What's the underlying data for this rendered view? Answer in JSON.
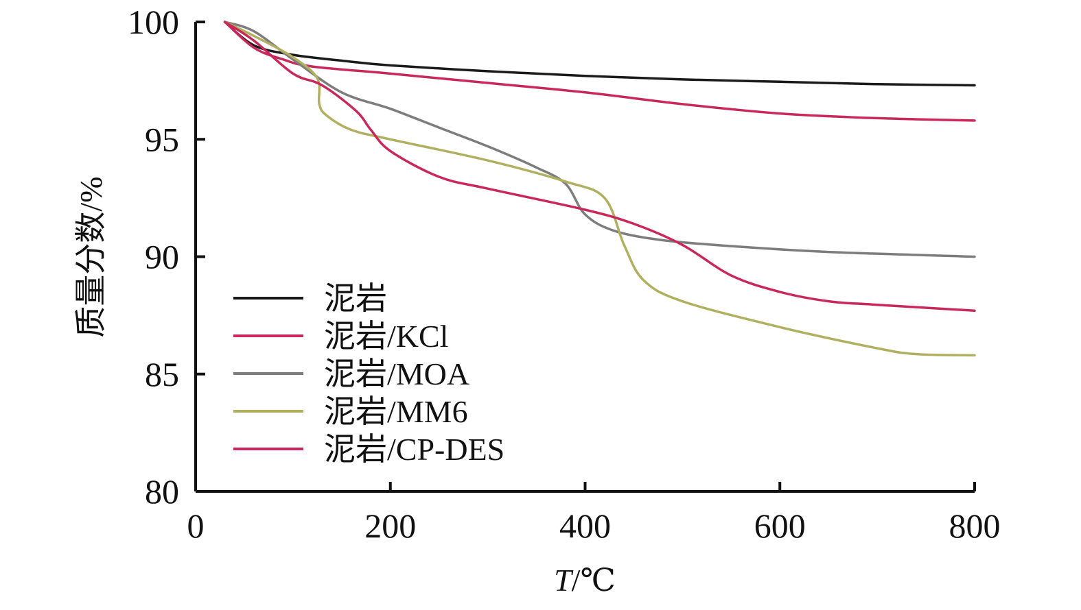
{
  "chart_data": {
    "type": "line",
    "xlabel": "T/℃",
    "xlabel_italic_part": "T",
    "xlabel_rest": "/℃",
    "ylabel": "质量分数/%",
    "xlim": [
      0,
      800
    ],
    "ylim": [
      80,
      100
    ],
    "xticks": [
      0,
      200,
      400,
      600,
      800
    ],
    "yticks": [
      80,
      85,
      90,
      95,
      100
    ],
    "grid": false,
    "legend_position": "left",
    "series": [
      {
        "name": "泥岩",
        "color": "#1a1a1a",
        "x": [
          30,
          60,
          100,
          150,
          200,
          300,
          400,
          500,
          600,
          700,
          800
        ],
        "y": [
          100,
          99.0,
          98.6,
          98.35,
          98.15,
          97.9,
          97.7,
          97.55,
          97.45,
          97.35,
          97.3
        ]
      },
      {
        "name": "泥岩/KCl",
        "color": "#c8285a",
        "x": [
          30,
          60,
          90,
          120,
          200,
          300,
          400,
          500,
          600,
          700,
          800
        ],
        "y": [
          100,
          98.9,
          98.4,
          98.1,
          97.8,
          97.4,
          97.0,
          96.5,
          96.1,
          95.9,
          95.8
        ]
      },
      {
        "name": "泥岩/MOA",
        "color": "#7d7d7d",
        "x": [
          30,
          60,
          100,
          150,
          200,
          250,
          300,
          350,
          380,
          400,
          430,
          480,
          550,
          650,
          800
        ],
        "y": [
          100,
          99.6,
          98.4,
          97.0,
          96.3,
          95.5,
          94.7,
          93.8,
          93.1,
          91.8,
          91.1,
          90.7,
          90.45,
          90.2,
          90.0
        ]
      },
      {
        "name": "泥岩/MM6",
        "color": "#b0b060",
        "x": [
          30,
          60,
          100,
          125,
          127,
          135,
          160,
          200,
          300,
          380,
          420,
          440,
          460,
          500,
          600,
          700,
          740,
          800
        ],
        "y": [
          100,
          99.4,
          98.5,
          97.6,
          96.5,
          96.0,
          95.4,
          95.0,
          94.1,
          93.2,
          92.5,
          90.5,
          89.0,
          88.1,
          87.0,
          86.1,
          85.85,
          85.8
        ]
      },
      {
        "name": "泥岩/CP-DES",
        "color": "#c8285a",
        "x": [
          30,
          60,
          100,
          130,
          165,
          180,
          200,
          250,
          300,
          400,
          450,
          500,
          550,
          600,
          650,
          700,
          800
        ],
        "y": [
          100,
          99.2,
          97.8,
          97.3,
          96.2,
          95.4,
          94.5,
          93.4,
          92.9,
          92.0,
          91.4,
          90.5,
          89.2,
          88.5,
          88.1,
          87.95,
          87.7
        ]
      }
    ]
  }
}
